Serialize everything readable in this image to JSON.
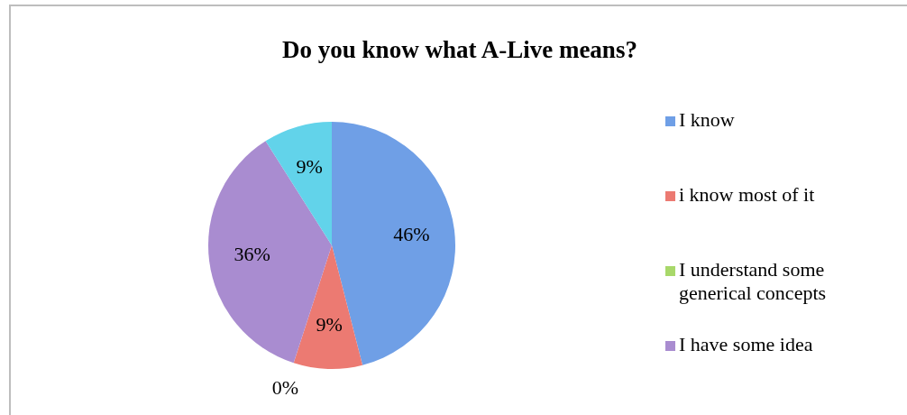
{
  "chart_data": {
    "type": "pie",
    "title": "Do you know what A-Live means?",
    "categories": [
      "I know",
      "i know most of it",
      "I understand some generical concepts",
      "I have some idea",
      null
    ],
    "values": [
      46,
      9,
      0,
      36,
      9
    ],
    "colors": [
      "#6f9fe6",
      "#ec7a72",
      "#a8d86a",
      "#a98cd0",
      "#62d3ea"
    ],
    "value_labels": [
      "46%",
      "9%",
      "0%",
      "36%",
      "9%"
    ],
    "legend": "right"
  }
}
